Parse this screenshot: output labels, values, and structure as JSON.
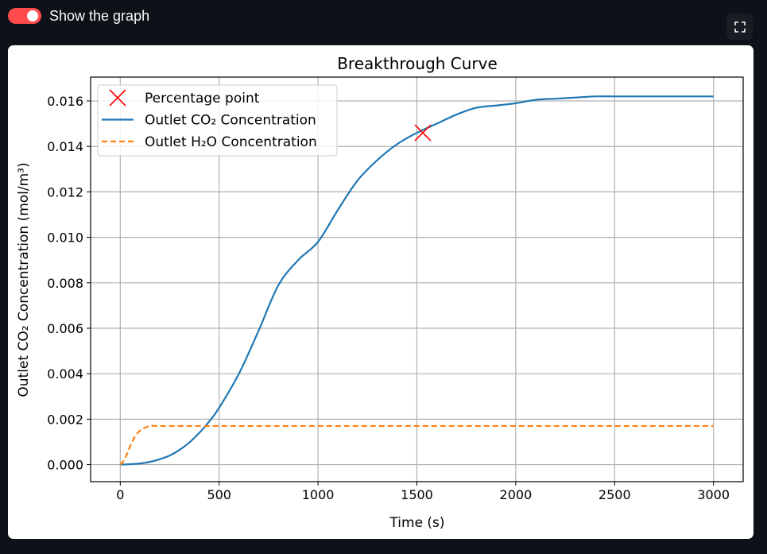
{
  "toggle": {
    "label": "Show the graph",
    "checked": true,
    "color": "#ff4b4b"
  },
  "fullscreen": {
    "icon": "fullscreen-icon"
  },
  "chart_data": {
    "type": "line",
    "title": "Breakthrough Curve",
    "xlabel": "Time (s)",
    "ylabel": "Outlet CO₂ Concentration (mol/m³)",
    "xlim": [
      -150,
      3150
    ],
    "ylim": [
      -0.00075,
      0.01705
    ],
    "xticks": [
      0,
      500,
      1000,
      1500,
      2000,
      2500,
      3000
    ],
    "xtick_labels": [
      "0",
      "500",
      "1000",
      "1500",
      "2000",
      "2500",
      "3000"
    ],
    "yticks": [
      0,
      0.002,
      0.004,
      0.006,
      0.008,
      0.01,
      0.012,
      0.014,
      0.016
    ],
    "ytick_labels": [
      "0.000",
      "0.002",
      "0.004",
      "0.006",
      "0.008",
      "0.010",
      "0.012",
      "0.014",
      "0.016"
    ],
    "grid": true,
    "legend_position": "top-left",
    "series": [
      {
        "name": "Outlet CO₂ Concentration",
        "color": "#1f77b4",
        "style": "solid",
        "x": [
          0,
          50,
          100,
          150,
          200,
          250,
          300,
          350,
          400,
          450,
          500,
          600,
          700,
          800,
          900,
          1000,
          1100,
          1200,
          1300,
          1400,
          1500,
          1600,
          1700,
          1800,
          1900,
          2000,
          2100,
          2200,
          2300,
          2400,
          2500,
          2600,
          2700,
          2800,
          2900,
          3000
        ],
        "y": [
          0,
          2e-05,
          5e-05,
          0.00012,
          0.00024,
          0.0004,
          0.00065,
          0.00098,
          0.0014,
          0.0019,
          0.0025,
          0.004,
          0.0059,
          0.0079,
          0.009,
          0.0098,
          0.0112,
          0.0125,
          0.0134,
          0.0141,
          0.0146,
          0.015,
          0.0154,
          0.0157,
          0.0158,
          0.0159,
          0.01605,
          0.0161,
          0.01615,
          0.0162,
          0.0162,
          0.0162,
          0.0162,
          0.0162,
          0.0162,
          0.0162
        ]
      },
      {
        "name": "Outlet H₂O Concentration",
        "color": "#ff7f0e",
        "style": "dashed",
        "x": [
          0,
          20,
          40,
          60,
          80,
          100,
          120,
          150,
          200,
          300,
          500,
          1000,
          1500,
          2000,
          2500,
          3000
        ],
        "y": [
          0,
          0.0002,
          0.0006,
          0.001,
          0.0013,
          0.0015,
          0.0016,
          0.0017,
          0.0017,
          0.0017,
          0.0017,
          0.0017,
          0.0017,
          0.0017,
          0.0017,
          0.0017
        ]
      },
      {
        "name": "Percentage point",
        "color": "#ff0000",
        "style": "marker-x",
        "x": [
          1530
        ],
        "y": [
          0.0146
        ]
      }
    ]
  }
}
